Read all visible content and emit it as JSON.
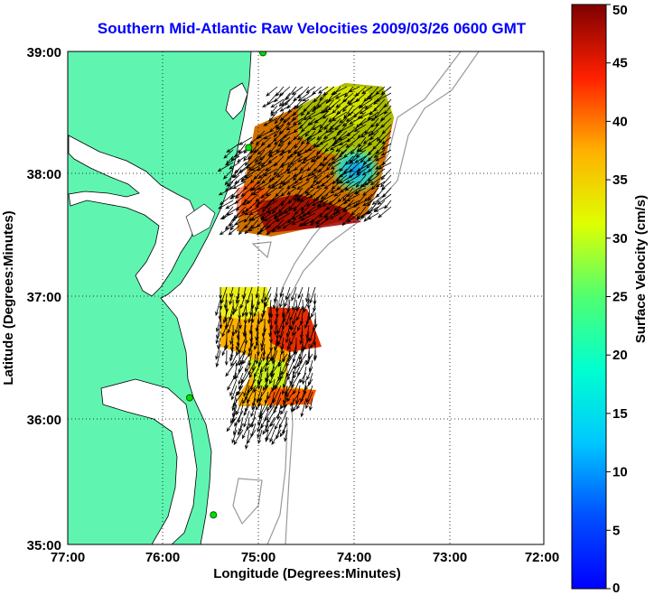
{
  "title": "Southern Mid-Atlantic Raw Velocities 2009/03/26 0600 GMT",
  "map": {
    "xlabel": "Longitude (Degrees:Minutes)",
    "ylabel": "Latitude (Degrees:Minutes)",
    "x_ticks": [
      "77:00",
      "76:00",
      "75:00",
      "74:00",
      "73:00",
      "72:00"
    ],
    "y_ticks": [
      "39:00",
      "38:00",
      "37:00",
      "36:00",
      "35:00"
    ],
    "lon_range": [
      -77,
      -72
    ],
    "lat_range": [
      35,
      39
    ],
    "grid": true,
    "land_color": "#5ff5b1",
    "isobath_color": "#999999"
  },
  "colorbar": {
    "label": "Surface Velocity (cm/s)",
    "ticks": [
      "0",
      "5",
      "10",
      "15",
      "20",
      "25",
      "30",
      "35",
      "40",
      "45",
      "50"
    ],
    "range": [
      0,
      50
    ],
    "colormap": "jet"
  },
  "stations": [
    {
      "lon": -74.95,
      "lat": 38.99
    },
    {
      "lon": -75.1,
      "lat": 38.22
    },
    {
      "lon": -75.72,
      "lat": 36.19
    },
    {
      "lon": -75.47,
      "lat": 35.24
    }
  ]
}
